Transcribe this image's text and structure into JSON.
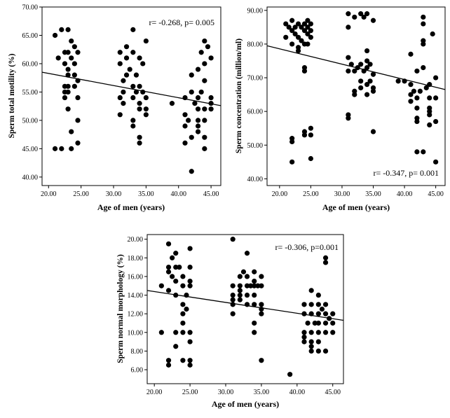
{
  "chart_data": [
    {
      "id": "motility",
      "type": "scatter",
      "title": "",
      "xlabel": "Age of men (years)",
      "ylabel": "Sperm total motility (%)",
      "annotation": "r= -0.268, p= 0.005",
      "xlim": [
        19,
        46.5
      ],
      "ylim": [
        38.5,
        70
      ],
      "xticks": [
        20,
        25,
        30,
        35,
        40,
        45
      ],
      "xtick_labels": [
        "20.00",
        "25.00",
        "30.00",
        "35.00",
        "40.00",
        "45.00"
      ],
      "yticks": [
        40,
        45,
        50,
        55,
        60,
        65,
        70
      ],
      "ytick_labels": [
        "40.00",
        "45.00",
        "50.00",
        "55.00",
        "60.00",
        "65.00",
        "70.00"
      ],
      "fit_line": {
        "x": [
          19,
          46.5
        ],
        "y": [
          58.5,
          52.6
        ]
      },
      "points": [
        [
          21,
          65
        ],
        [
          21,
          45
        ],
        [
          21.5,
          61
        ],
        [
          22,
          45
        ],
        [
          22,
          66
        ],
        [
          23,
          66
        ],
        [
          22.5,
          62
        ],
        [
          22.5,
          60
        ],
        [
          23,
          62
        ],
        [
          23,
          58
        ],
        [
          22.5,
          56
        ],
        [
          22.5,
          55
        ],
        [
          23,
          56
        ],
        [
          23.5,
          64
        ],
        [
          23.5,
          61
        ],
        [
          23,
          59
        ],
        [
          24,
          63
        ],
        [
          24,
          60
        ],
        [
          24,
          58
        ],
        [
          24,
          56
        ],
        [
          24.5,
          62
        ],
        [
          24.5,
          57
        ],
        [
          23,
          52
        ],
        [
          24.5,
          54
        ],
        [
          23.5,
          48
        ],
        [
          23.5,
          45
        ],
        [
          24.5,
          50
        ],
        [
          24.5,
          46
        ],
        [
          23,
          55
        ],
        [
          22.5,
          54
        ],
        [
          31,
          62
        ],
        [
          31,
          60
        ],
        [
          31.5,
          57
        ],
        [
          31.5,
          55
        ],
        [
          31,
          54
        ],
        [
          31,
          51
        ],
        [
          31.5,
          53
        ],
        [
          32,
          63
        ],
        [
          32,
          61
        ],
        [
          32,
          58
        ],
        [
          32.5,
          59
        ],
        [
          33,
          66
        ],
        [
          33,
          62
        ],
        [
          33,
          56
        ],
        [
          33,
          54
        ],
        [
          33,
          50
        ],
        [
          33,
          49
        ],
        [
          33.5,
          58
        ],
        [
          33.5,
          55
        ],
        [
          34,
          61
        ],
        [
          34,
          56
        ],
        [
          34,
          53
        ],
        [
          34,
          52
        ],
        [
          34,
          47
        ],
        [
          34,
          46
        ],
        [
          34.5,
          60
        ],
        [
          34.5,
          55
        ],
        [
          35,
          64
        ],
        [
          35,
          54
        ],
        [
          35,
          52
        ],
        [
          35,
          51
        ],
        [
          39,
          53
        ],
        [
          41,
          54
        ],
        [
          41,
          51
        ],
        [
          41,
          49
        ],
        [
          41,
          46
        ],
        [
          41.5,
          50
        ],
        [
          42,
          58
        ],
        [
          42,
          55
        ],
        [
          42,
          47
        ],
        [
          42,
          41
        ],
        [
          42.5,
          53
        ],
        [
          43,
          59
        ],
        [
          43,
          54
        ],
        [
          43,
          52
        ],
        [
          43,
          50
        ],
        [
          43,
          49
        ],
        [
          43,
          48
        ],
        [
          43.5,
          62
        ],
        [
          43.5,
          55
        ],
        [
          44,
          64
        ],
        [
          44,
          60
        ],
        [
          44,
          57
        ],
        [
          44,
          52
        ],
        [
          44,
          50
        ],
        [
          44,
          47
        ],
        [
          44,
          45
        ],
        [
          44.5,
          63
        ],
        [
          45,
          61
        ],
        [
          45,
          54
        ],
        [
          45,
          53
        ],
        [
          45,
          52
        ]
      ]
    },
    {
      "id": "concentration",
      "type": "scatter",
      "title": "",
      "xlabel": "Age of men (years)",
      "ylabel": "Sperm concentration (million/ml)",
      "annotation": "r= -0.347, p= 0.001",
      "xlim": [
        18,
        46.5
      ],
      "ylim": [
        38,
        91
      ],
      "xticks": [
        20,
        25,
        30,
        35,
        40,
        45
      ],
      "xtick_labels": [
        "20.00",
        "25.00",
        "30.00",
        "35.00",
        "40.00",
        "45.00"
      ],
      "yticks": [
        40,
        50,
        60,
        70,
        80,
        90
      ],
      "ytick_labels": [
        "40.00",
        "50.00",
        "60.00",
        "70.00",
        "80.00",
        "90.00"
      ],
      "fit_line": {
        "x": [
          18,
          46.5
        ],
        "y": [
          79.5,
          66.5
        ]
      },
      "points": [
        [
          21,
          86
        ],
        [
          21,
          82
        ],
        [
          21.5,
          85
        ],
        [
          22,
          87
        ],
        [
          22,
          84
        ],
        [
          22,
          80
        ],
        [
          22,
          52
        ],
        [
          22,
          51
        ],
        [
          22,
          45
        ],
        [
          22.5,
          85
        ],
        [
          22.5,
          83
        ],
        [
          23,
          86
        ],
        [
          23,
          82
        ],
        [
          23,
          79
        ],
        [
          23,
          78
        ],
        [
          23.5,
          85
        ],
        [
          23.5,
          81
        ],
        [
          24,
          86
        ],
        [
          24,
          84
        ],
        [
          24,
          80
        ],
        [
          24,
          73
        ],
        [
          24,
          72
        ],
        [
          24,
          54
        ],
        [
          24,
          53
        ],
        [
          24.5,
          87
        ],
        [
          24.5,
          85
        ],
        [
          24.5,
          83
        ],
        [
          24.5,
          80
        ],
        [
          25,
          86
        ],
        [
          25,
          84
        ],
        [
          25,
          82
        ],
        [
          25,
          55
        ],
        [
          25,
          53
        ],
        [
          25,
          46
        ],
        [
          31,
          89
        ],
        [
          31,
          85
        ],
        [
          31,
          76
        ],
        [
          31,
          72
        ],
        [
          31,
          59
        ],
        [
          31,
          58
        ],
        [
          31.5,
          74
        ],
        [
          32,
          88
        ],
        [
          32,
          72
        ],
        [
          32,
          66
        ],
        [
          32,
          65
        ],
        [
          32.5,
          73
        ],
        [
          33,
          89
        ],
        [
          33,
          74
        ],
        [
          33,
          69
        ],
        [
          33,
          67
        ],
        [
          33.5,
          88
        ],
        [
          33.5,
          72
        ],
        [
          34,
          89
        ],
        [
          34,
          78
        ],
        [
          34,
          75
        ],
        [
          34,
          73
        ],
        [
          34,
          68
        ],
        [
          34,
          65
        ],
        [
          34.5,
          74
        ],
        [
          34.5,
          69
        ],
        [
          35,
          87
        ],
        [
          35,
          71
        ],
        [
          35,
          67
        ],
        [
          35,
          66
        ],
        [
          35,
          54
        ],
        [
          39,
          69
        ],
        [
          40,
          69
        ],
        [
          41,
          77
        ],
        [
          41,
          68
        ],
        [
          41,
          65
        ],
        [
          41,
          63
        ],
        [
          41.5,
          66
        ],
        [
          42,
          72
        ],
        [
          42,
          64
        ],
        [
          42,
          61
        ],
        [
          42,
          58
        ],
        [
          42,
          57
        ],
        [
          42,
          48
        ],
        [
          42.5,
          66
        ],
        [
          43,
          88
        ],
        [
          43,
          86
        ],
        [
          43,
          81
        ],
        [
          43,
          80
        ],
        [
          43,
          73
        ],
        [
          43,
          48
        ],
        [
          43.5,
          67
        ],
        [
          44,
          68
        ],
        [
          44,
          64
        ],
        [
          44,
          61
        ],
        [
          44,
          60
        ],
        [
          44,
          59
        ],
        [
          44,
          56
        ],
        [
          44.5,
          83
        ],
        [
          45,
          70
        ],
        [
          45,
          64
        ],
        [
          45,
          57
        ],
        [
          45,
          45
        ]
      ]
    },
    {
      "id": "morphology",
      "type": "scatter",
      "title": "",
      "xlabel": "Age of men (years)",
      "ylabel": "Sperm normal morphology (%)",
      "annotation": "r= -0.306, p=0.001",
      "xlim": [
        19,
        46.5
      ],
      "ylim": [
        4.5,
        20.5
      ],
      "xticks": [
        20,
        25,
        30,
        35,
        40,
        45
      ],
      "xtick_labels": [
        "20.00",
        "25.00",
        "30.00",
        "35.00",
        "40.00",
        "45.00"
      ],
      "yticks": [
        6,
        8,
        10,
        12,
        14,
        16,
        18,
        20
      ],
      "ytick_labels": [
        "6.00",
        "8.00",
        "10.00",
        "12.00",
        "14.00",
        "16.00",
        "18.00",
        "20.00"
      ],
      "fit_line": {
        "x": [
          19,
          46.5
        ],
        "y": [
          14.5,
          11.3
        ]
      },
      "points": [
        [
          21,
          15
        ],
        [
          21,
          10
        ],
        [
          22,
          19.5
        ],
        [
          22,
          17
        ],
        [
          22,
          16.5
        ],
        [
          22,
          14.5
        ],
        [
          22,
          7
        ],
        [
          22,
          6.5
        ],
        [
          22.5,
          18
        ],
        [
          22.5,
          16
        ],
        [
          23,
          18.5
        ],
        [
          23,
          17
        ],
        [
          23,
          15.5
        ],
        [
          23,
          14
        ],
        [
          23,
          10
        ],
        [
          23,
          8.5
        ],
        [
          23.5,
          17
        ],
        [
          24,
          16
        ],
        [
          24,
          15
        ],
        [
          24,
          13
        ],
        [
          24,
          12
        ],
        [
          24,
          11
        ],
        [
          24,
          10
        ],
        [
          24,
          7
        ],
        [
          24.5,
          14
        ],
        [
          24.5,
          12.5
        ],
        [
          25,
          19
        ],
        [
          25,
          17
        ],
        [
          25,
          15.5
        ],
        [
          25,
          15
        ],
        [
          25,
          10
        ],
        [
          25,
          9
        ],
        [
          25,
          7
        ],
        [
          25,
          6.5
        ],
        [
          31,
          20
        ],
        [
          31,
          15
        ],
        [
          31,
          14
        ],
        [
          31,
          13.5
        ],
        [
          31,
          13
        ],
        [
          31,
          12
        ],
        [
          32,
          16
        ],
        [
          32,
          15
        ],
        [
          32,
          14.5
        ],
        [
          32,
          14
        ],
        [
          32,
          13.5
        ],
        [
          32.5,
          16.5
        ],
        [
          33,
          18.5
        ],
        [
          33,
          16
        ],
        [
          33,
          15
        ],
        [
          33,
          14
        ],
        [
          33,
          13
        ],
        [
          33.5,
          15
        ],
        [
          34,
          16.5
        ],
        [
          34,
          15.5
        ],
        [
          34,
          15
        ],
        [
          34,
          14
        ],
        [
          34,
          13
        ],
        [
          34,
          11
        ],
        [
          34,
          10
        ],
        [
          34.5,
          15
        ],
        [
          35,
          16
        ],
        [
          35,
          15
        ],
        [
          35,
          13
        ],
        [
          35,
          12.5
        ],
        [
          35,
          12
        ],
        [
          35,
          7
        ],
        [
          39,
          5.5
        ],
        [
          41,
          13
        ],
        [
          41,
          12
        ],
        [
          41,
          10
        ],
        [
          41,
          9.5
        ],
        [
          41,
          9
        ],
        [
          41.5,
          11
        ],
        [
          42,
          14.5
        ],
        [
          42,
          13
        ],
        [
          42,
          12
        ],
        [
          42,
          10
        ],
        [
          42,
          9
        ],
        [
          42,
          8.5
        ],
        [
          42,
          8
        ],
        [
          42.5,
          11
        ],
        [
          43,
          14
        ],
        [
          43,
          13
        ],
        [
          43,
          12
        ],
        [
          43,
          11
        ],
        [
          43,
          10
        ],
        [
          43,
          9
        ],
        [
          43,
          8
        ],
        [
          43.5,
          12.5
        ],
        [
          44,
          18
        ],
        [
          44,
          17.5
        ],
        [
          44,
          13
        ],
        [
          44,
          12
        ],
        [
          44,
          11
        ],
        [
          44,
          10
        ],
        [
          44,
          8
        ],
        [
          44.5,
          11.5
        ],
        [
          45,
          12
        ],
        [
          45,
          11
        ],
        [
          45,
          10
        ]
      ]
    }
  ]
}
